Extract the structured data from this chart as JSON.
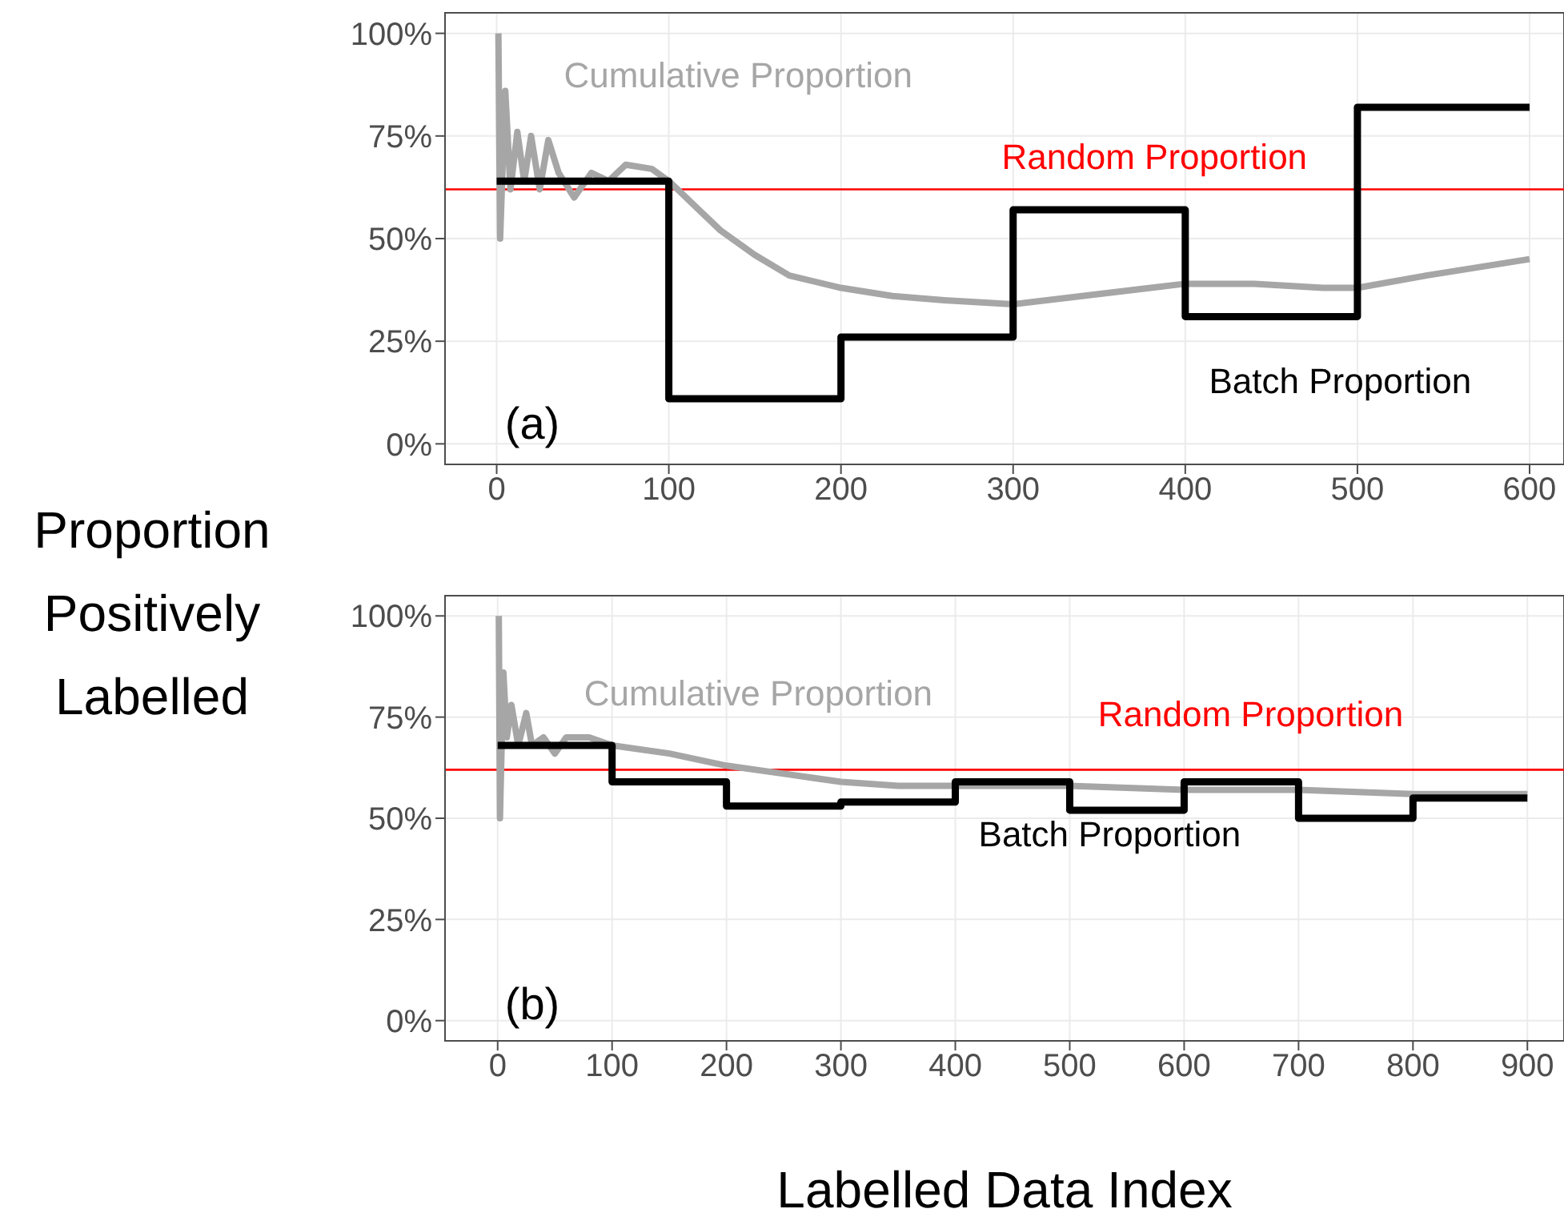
{
  "chart_data": [
    {
      "type": "line",
      "annotations": [
        "(a)"
      ],
      "ylabel": "Proportion Positively Labelled",
      "xlim": [
        -30,
        620
      ],
      "xticks": [
        0,
        100,
        200,
        300,
        400,
        500,
        600
      ],
      "ylim": [
        -5,
        105
      ],
      "yticks": [
        {
          "value": 0,
          "label": "0%"
        },
        {
          "value": 25,
          "label": "25%"
        },
        {
          "value": 50,
          "label": "50%"
        },
        {
          "value": 75,
          "label": "75%"
        },
        {
          "value": 100,
          "label": "100%"
        }
      ],
      "grid": true,
      "ref_lines": [
        {
          "axis": "y",
          "value": 62,
          "label": "Random Proportion",
          "color": "#ff0000"
        }
      ],
      "series": [
        {
          "name": "Cumulative Proportion",
          "color": "#a6a6a6",
          "x": [
            1,
            2,
            5,
            8,
            12,
            16,
            20,
            25,
            30,
            36,
            45,
            55,
            65,
            75,
            90,
            100,
            110,
            130,
            150,
            170,
            200,
            230,
            260,
            300,
            340,
            380,
            400,
            440,
            480,
            500,
            540,
            570,
            600
          ],
          "values": [
            100,
            50,
            86,
            62,
            76,
            64,
            75,
            62,
            74,
            66,
            60,
            66,
            64,
            68,
            67,
            64,
            60,
            52,
            46,
            41,
            38,
            36,
            35,
            34,
            36,
            38,
            39,
            39,
            38,
            38,
            41,
            43,
            45
          ]
        },
        {
          "name": "Batch Proportion",
          "type": "step",
          "color": "#000000",
          "x": [
            0,
            100,
            200,
            300,
            400,
            500,
            600
          ],
          "values": [
            64,
            11,
            26,
            57,
            31,
            82,
            82
          ]
        }
      ]
    },
    {
      "type": "line",
      "annotations": [
        "(b)"
      ],
      "xlabel": "Labelled Data Index",
      "xlim": [
        -46,
        932
      ],
      "xticks": [
        0,
        100,
        200,
        300,
        400,
        500,
        600,
        700,
        800,
        900
      ],
      "ylim": [
        -5,
        105
      ],
      "yticks": [
        {
          "value": 0,
          "label": "0%"
        },
        {
          "value": 25,
          "label": "25%"
        },
        {
          "value": 50,
          "label": "50%"
        },
        {
          "value": 75,
          "label": "75%"
        },
        {
          "value": 100,
          "label": "100%"
        }
      ],
      "grid": true,
      "ref_lines": [
        {
          "axis": "y",
          "value": 62,
          "label": "Random Proportion",
          "color": "#ff0000"
        }
      ],
      "series": [
        {
          "name": "Cumulative Proportion",
          "color": "#a6a6a6",
          "x": [
            1,
            2,
            5,
            8,
            12,
            18,
            25,
            30,
            40,
            50,
            60,
            80,
            100,
            150,
            200,
            250,
            300,
            350,
            400,
            450,
            500,
            600,
            700,
            800,
            900
          ],
          "values": [
            100,
            50,
            86,
            70,
            78,
            68,
            76,
            68,
            70,
            66,
            70,
            70,
            68,
            66,
            63,
            61,
            59,
            58,
            58,
            58,
            58,
            57,
            57,
            56,
            56
          ]
        },
        {
          "name": "Batch Proportion",
          "type": "step",
          "color": "#000000",
          "x": [
            0,
            100,
            200,
            300,
            400,
            500,
            600,
            700,
            800,
            900
          ],
          "values": [
            68,
            59,
            53,
            54,
            59,
            52,
            59,
            50,
            55,
            55
          ]
        }
      ]
    }
  ]
}
